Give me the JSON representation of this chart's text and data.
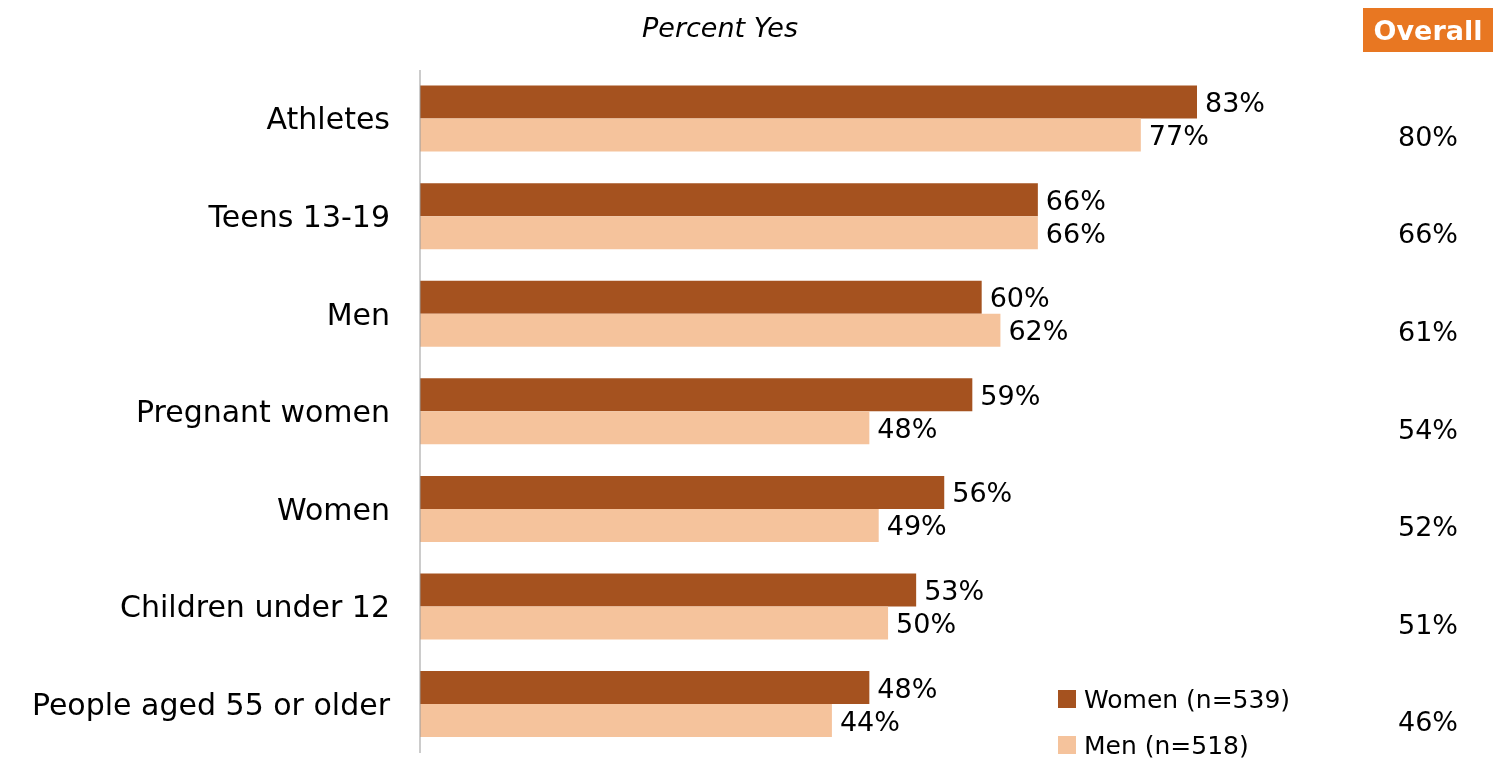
{
  "chart_data": {
    "type": "bar",
    "orientation": "horizontal",
    "title": "Percent Yes",
    "categories": [
      "Athletes",
      "Teens 13-19",
      "Men",
      "Pregnant women",
      "Women",
      "Children under 12",
      "People aged 55 or older"
    ],
    "series": [
      {
        "name": "Women (n=539)",
        "color": "#a5521f",
        "values": [
          83,
          66,
          60,
          59,
          56,
          53,
          48
        ],
        "value_labels": [
          "83%",
          "66%",
          "60%",
          "59%",
          "56%",
          "53%",
          "48%"
        ]
      },
      {
        "name": "Men (n=518)",
        "color": "#f5c39c",
        "values": [
          77,
          66,
          62,
          48,
          49,
          50,
          44
        ],
        "value_labels": [
          "77%",
          "66%",
          "62%",
          "48%",
          "49%",
          "50%",
          "44%"
        ]
      }
    ],
    "legend": "bottom right",
    "annotations": [
      "Overall",
      "80%",
      "66%",
      "61%",
      "54%",
      "52%",
      "51%",
      "46%"
    ]
  }
}
